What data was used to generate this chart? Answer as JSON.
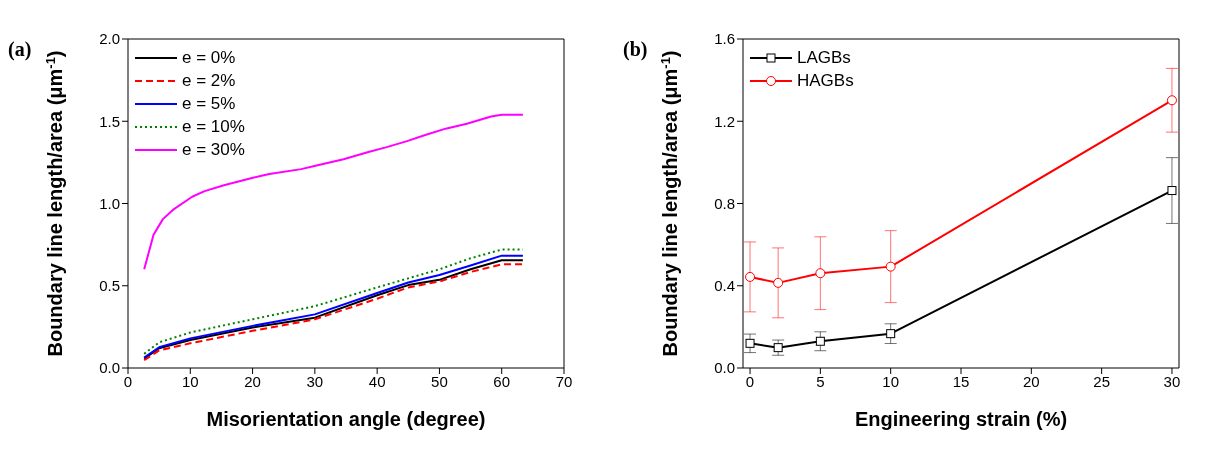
{
  "chart_data": [
    {
      "type": "line",
      "annotations": [
        "(a)"
      ],
      "xlabel": "Misorientation angle (degree)",
      "ylabel": "Boundary line length/area (μm$^{-1}$)",
      "x": [
        2.6,
        5,
        10,
        20,
        30,
        40,
        45,
        50,
        55,
        60,
        63.4
      ],
      "xlim": [
        0,
        70
      ],
      "xticks": [
        0,
        10,
        20,
        30,
        40,
        50,
        60,
        70
      ],
      "ylim": [
        0,
        2.0
      ],
      "yticks": [
        {
          "value": 0,
          "label": "0.0"
        },
        {
          "value": 0.5,
          "label": "0.5"
        },
        {
          "value": 1.0,
          "label": "1.0"
        },
        {
          "value": 1.5,
          "label": "1.5"
        },
        {
          "value": 2.0,
          "label": "2.0"
        }
      ],
      "legend": "top left",
      "series": [
        {
          "name": "e = 0%",
          "color": "#000000",
          "line_style": "solid",
          "values": [
            0.057,
            0.12,
            0.17,
            0.246,
            0.306,
            0.442,
            0.504,
            0.536,
            0.6,
            0.655,
            0.655
          ]
        },
        {
          "name": "e = 2%",
          "color": "#ff0000",
          "line_style": "dashed",
          "values": [
            0.048,
            0.107,
            0.15,
            0.226,
            0.296,
            0.421,
            0.49,
            0.526,
            0.584,
            0.63,
            0.63
          ]
        },
        {
          "name": "e = 5%",
          "color": "#0000ff",
          "line_style": "solid",
          "values": [
            0.063,
            0.126,
            0.18,
            0.256,
            0.326,
            0.456,
            0.52,
            0.565,
            0.623,
            0.683,
            0.683
          ]
        },
        {
          "name": "e = 10%",
          "color": "#008000",
          "line_style": "dotted",
          "values": [
            0.086,
            0.156,
            0.216,
            0.296,
            0.376,
            0.49,
            0.545,
            0.6,
            0.667,
            0.72,
            0.72
          ]
        },
        {
          "name": "e = 30%",
          "color": "#ff00ff",
          "line_style": "solid",
          "x": [
            2.6,
            4.1,
            5.6,
            7.2,
            10.3,
            12.3,
            15.4,
            19.9,
            22.7,
            27.8,
            30.1,
            34.6,
            38.6,
            41.4,
            44.8,
            47.6,
            51.0,
            54.4,
            58.3,
            60.0,
            63.4
          ],
          "values": [
            0.6,
            0.81,
            0.905,
            0.961,
            1.041,
            1.075,
            1.111,
            1.155,
            1.179,
            1.209,
            1.229,
            1.269,
            1.313,
            1.341,
            1.379,
            1.415,
            1.455,
            1.485,
            1.529,
            1.539,
            1.539
          ]
        }
      ]
    },
    {
      "type": "line",
      "annotations": [
        "(b)"
      ],
      "xlabel": "Engineering strain (%)",
      "ylabel": "Boundary line length/area (μm$^{-1}$)",
      "x": [
        0,
        2,
        5,
        10,
        30
      ],
      "xlim": [
        -0.5,
        30.5
      ],
      "xticks": [
        0,
        5,
        10,
        15,
        20,
        25,
        30
      ],
      "ylim": [
        0,
        1.6
      ],
      "yticks": [
        {
          "value": 0,
          "label": "0.0"
        },
        {
          "value": 0.4,
          "label": "0.4"
        },
        {
          "value": 0.8,
          "label": "0.8"
        },
        {
          "value": 1.2,
          "label": "1.2"
        },
        {
          "value": 1.6,
          "label": "1.6"
        }
      ],
      "legend": "top left",
      "series": [
        {
          "name": "LAGBs",
          "color": "#000000",
          "marker": "square",
          "values": [
            0.12,
            0.099,
            0.13,
            0.167,
            0.863
          ],
          "errors": [
            0.045,
            0.037,
            0.046,
            0.048,
            0.16
          ]
        },
        {
          "name": "HAGBs",
          "color": "#ff0000",
          "marker": "circle",
          "values": [
            0.443,
            0.414,
            0.461,
            0.493,
            1.302
          ],
          "errors": [
            0.17,
            0.17,
            0.177,
            0.175,
            0.155
          ]
        }
      ]
    }
  ]
}
